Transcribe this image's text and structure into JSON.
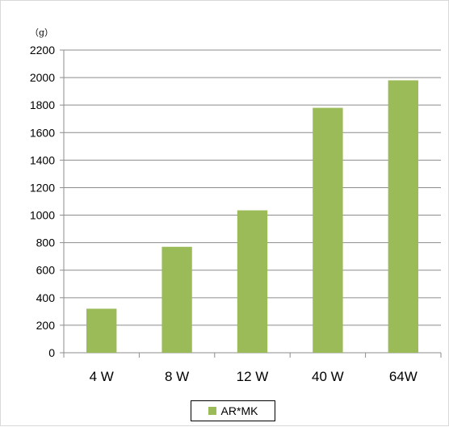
{
  "chart_data": {
    "type": "bar",
    "unit_label": "（g）",
    "categories": [
      "4 W",
      "8 W",
      "12 W",
      "40 W",
      "64W"
    ],
    "series": [
      {
        "name": "AR*MK",
        "values": [
          320,
          770,
          1035,
          1780,
          1980
        ],
        "color": "#9bbb59"
      }
    ],
    "ylim": [
      0,
      2200
    ],
    "yticks": [
      "0",
      "200",
      "400",
      "600",
      "800",
      "1000",
      "1200",
      "1400",
      "1600",
      "1800",
      "2000",
      "2200"
    ],
    "grid": true,
    "legend_position": "bottom"
  }
}
